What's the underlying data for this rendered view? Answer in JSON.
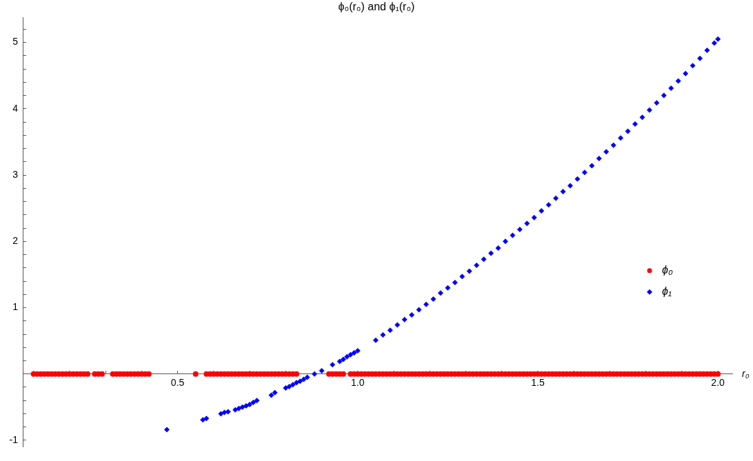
{
  "chart_data": {
    "type": "scatter",
    "title": "ϕ₀(r₀) and ϕ₁(r₀)",
    "xlabel": "r₀",
    "xlim": [
      0.07,
      2.04
    ],
    "ylim": [
      -1.1,
      5.38
    ],
    "xticks": [
      {
        "value": 0.1,
        "label": null
      },
      {
        "value": 0.2,
        "label": null
      },
      {
        "value": 0.3,
        "label": null
      },
      {
        "value": 0.4,
        "label": null
      },
      {
        "value": 0.5,
        "label": "0.5"
      },
      {
        "value": 0.6,
        "label": null
      },
      {
        "value": 0.7,
        "label": null
      },
      {
        "value": 0.8,
        "label": null
      },
      {
        "value": 0.9,
        "label": null
      },
      {
        "value": 1.0,
        "label": "1.0"
      },
      {
        "value": 1.1,
        "label": null
      },
      {
        "value": 1.2,
        "label": null
      },
      {
        "value": 1.3,
        "label": null
      },
      {
        "value": 1.4,
        "label": null
      },
      {
        "value": 1.5,
        "label": "1.5"
      },
      {
        "value": 1.6,
        "label": null
      },
      {
        "value": 1.7,
        "label": null
      },
      {
        "value": 1.8,
        "label": null
      },
      {
        "value": 1.9,
        "label": null
      },
      {
        "value": 2.0,
        "label": "2.0"
      }
    ],
    "yticks": [
      -1,
      {
        "value": -0.8,
        "label": null
      },
      {
        "value": -0.6,
        "label": null
      },
      {
        "value": -0.4,
        "label": null
      },
      {
        "value": -0.2,
        "label": null
      },
      {
        "value": 0.2,
        "label": null
      },
      {
        "value": 0.4,
        "label": null
      },
      {
        "value": 0.6,
        "label": null
      },
      {
        "value": 0.8,
        "label": null
      },
      1,
      {
        "value": 1.2,
        "label": null
      },
      {
        "value": 1.4,
        "label": null
      },
      {
        "value": 1.6,
        "label": null
      },
      {
        "value": 1.8,
        "label": null
      },
      2,
      {
        "value": 2.2,
        "label": null
      },
      {
        "value": 2.4,
        "label": null
      },
      {
        "value": 2.6,
        "label": null
      },
      {
        "value": 2.8,
        "label": null
      },
      3,
      {
        "value": 3.2,
        "label": null
      },
      {
        "value": 3.4,
        "label": null
      },
      {
        "value": 3.6,
        "label": null
      },
      {
        "value": 3.8,
        "label": null
      },
      4,
      {
        "value": 4.2,
        "label": null
      },
      {
        "value": 4.4,
        "label": null
      },
      {
        "value": 4.6,
        "label": null
      },
      {
        "value": 4.8,
        "label": null
      },
      5,
      {
        "value": 5.2,
        "label": null
      }
    ],
    "grid": false,
    "legend": "right",
    "series": [
      {
        "name": "ϕ₀",
        "color": "#ff0000",
        "marker": "circle",
        "x": [
          0.1,
          0.11,
          0.12,
          0.13,
          0.14,
          0.15,
          0.16,
          0.17,
          0.18,
          0.19,
          0.2,
          0.21,
          0.22,
          0.23,
          0.24,
          0.25,
          0.27,
          0.28,
          0.29,
          0.32,
          0.33,
          0.34,
          0.35,
          0.36,
          0.37,
          0.38,
          0.39,
          0.4,
          0.41,
          0.42,
          0.55,
          0.58,
          0.59,
          0.6,
          0.61,
          0.62,
          0.63,
          0.64,
          0.65,
          0.66,
          0.67,
          0.68,
          0.69,
          0.7,
          0.71,
          0.72,
          0.73,
          0.74,
          0.75,
          0.76,
          0.77,
          0.78,
          0.79,
          0.8,
          0.81,
          0.82,
          0.83,
          0.92,
          0.93,
          0.94,
          0.95,
          0.96,
          0.98,
          0.99,
          1.0,
          1.01,
          1.02,
          1.03,
          1.04,
          1.05,
          1.06,
          1.07,
          1.08,
          1.09,
          1.1,
          1.11,
          1.12,
          1.13,
          1.14,
          1.15,
          1.16,
          1.17,
          1.18,
          1.19,
          1.2,
          1.21,
          1.22,
          1.23,
          1.24,
          1.25,
          1.26,
          1.27,
          1.28,
          1.29,
          1.3,
          1.31,
          1.32,
          1.33,
          1.34,
          1.35,
          1.36,
          1.37,
          1.38,
          1.39,
          1.4,
          1.41,
          1.42,
          1.43,
          1.44,
          1.45,
          1.46,
          1.47,
          1.48,
          1.49,
          1.5,
          1.51,
          1.52,
          1.53,
          1.54,
          1.55,
          1.56,
          1.57,
          1.58,
          1.59,
          1.6,
          1.61,
          1.62,
          1.63,
          1.64,
          1.65,
          1.66,
          1.67,
          1.68,
          1.69,
          1.7,
          1.71,
          1.72,
          1.73,
          1.74,
          1.75,
          1.76,
          1.77,
          1.78,
          1.79,
          1.8,
          1.81,
          1.82,
          1.83,
          1.84,
          1.85,
          1.86,
          1.87,
          1.88,
          1.89,
          1.9,
          1.91,
          1.92,
          1.93,
          1.94,
          1.95,
          1.96,
          1.97,
          1.98,
          1.99,
          2.0
        ],
        "values": [
          0,
          0,
          0,
          0,
          0,
          0,
          0,
          0,
          0,
          0,
          0,
          0,
          0,
          0,
          0,
          0,
          0,
          0,
          0,
          0,
          0,
          0,
          0,
          0,
          0,
          0,
          0,
          0,
          0,
          0,
          0,
          0,
          0,
          0,
          0,
          0,
          0,
          0,
          0,
          0,
          0,
          0,
          0,
          0,
          0,
          0,
          0,
          0,
          0,
          0,
          0,
          0,
          0,
          0,
          0,
          0,
          0,
          0,
          0,
          0,
          0,
          0,
          0,
          0,
          0,
          0,
          0,
          0,
          0,
          0,
          0,
          0,
          0,
          0,
          0,
          0,
          0,
          0,
          0,
          0,
          0,
          0,
          0,
          0,
          0,
          0,
          0,
          0,
          0,
          0,
          0,
          0,
          0,
          0,
          0,
          0,
          0,
          0,
          0,
          0,
          0,
          0,
          0,
          0,
          0,
          0,
          0,
          0,
          0,
          0,
          0,
          0,
          0,
          0,
          0,
          0,
          0,
          0,
          0,
          0,
          0,
          0,
          0,
          0,
          0,
          0,
          0,
          0,
          0,
          0,
          0,
          0,
          0,
          0,
          0,
          0,
          0,
          0,
          0,
          0,
          0,
          0,
          0,
          0,
          0,
          0,
          0,
          0,
          0,
          0,
          0,
          0,
          0,
          0,
          0,
          0,
          0,
          0,
          0,
          0,
          0,
          0,
          0,
          0,
          0
        ]
      },
      {
        "name": "ϕ₁",
        "color": "#0000ff",
        "marker": "diamond",
        "x": [
          0.47,
          0.57,
          0.58,
          0.62,
          0.63,
          0.64,
          0.66,
          0.67,
          0.68,
          0.69,
          0.7,
          0.71,
          0.72,
          0.76,
          0.77,
          0.8,
          0.81,
          0.82,
          0.83,
          0.84,
          0.85,
          0.86,
          0.88,
          0.9,
          0.93,
          0.95,
          0.96,
          0.97,
          0.98,
          0.99,
          1.0,
          1.05,
          1.07,
          1.09,
          1.11,
          1.13,
          1.15,
          1.17,
          1.19,
          1.21,
          1.23,
          1.25,
          1.27,
          1.29,
          1.31,
          1.33,
          1.35,
          1.37,
          1.39,
          1.41,
          1.43,
          1.45,
          1.47,
          1.49,
          1.51,
          1.53,
          1.55,
          1.57,
          1.59,
          1.61,
          1.63,
          1.65,
          1.67,
          1.69,
          1.71,
          1.73,
          1.75,
          1.77,
          1.79,
          1.81,
          1.83,
          1.85,
          1.87,
          1.89,
          1.91,
          1.93,
          1.95,
          1.97,
          1.99,
          2.0
        ],
        "values": [
          -0.84,
          -0.69,
          -0.67,
          -0.6,
          -0.58,
          -0.57,
          -0.54,
          -0.52,
          -0.5,
          -0.48,
          -0.46,
          -0.43,
          -0.4,
          -0.32,
          -0.28,
          -0.21,
          -0.19,
          -0.16,
          -0.13,
          -0.11,
          -0.08,
          -0.05,
          0.0,
          0.05,
          0.14,
          0.19,
          0.22,
          0.26,
          0.29,
          0.32,
          0.35,
          0.51,
          0.59,
          0.66,
          0.74,
          0.82,
          0.89,
          0.97,
          1.05,
          1.13,
          1.22,
          1.3,
          1.38,
          1.47,
          1.55,
          1.64,
          1.73,
          1.82,
          1.9,
          2.0,
          2.09,
          2.18,
          2.27,
          2.36,
          2.46,
          2.55,
          2.65,
          2.75,
          2.84,
          2.94,
          3.04,
          3.14,
          3.25,
          3.35,
          3.45,
          3.56,
          3.66,
          3.77,
          3.87,
          3.98,
          4.09,
          4.2,
          4.31,
          4.42,
          4.53,
          4.65,
          4.76,
          4.88,
          4.99,
          5.05
        ]
      }
    ]
  }
}
